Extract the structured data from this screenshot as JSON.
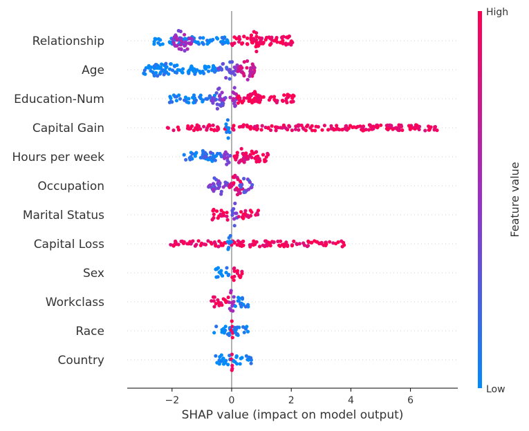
{
  "chart_data": {
    "type": "scatter",
    "subtype": "shap-beeswarm",
    "xlabel": "SHAP value (impact on model output)",
    "xlim": [
      -3.5,
      7.6
    ],
    "xticks": [
      -2,
      0,
      2,
      4,
      6
    ],
    "zero_line": 0,
    "grid": "dotted horizontal per feature",
    "colorbar": {
      "label": "Feature value",
      "high_label": "High",
      "low_label": "Low",
      "low_color": "#008bfb",
      "high_color": "#ff0052",
      "placement": "right"
    },
    "features": [
      {
        "name": "Relationship",
        "clusters": [
          {
            "x": [
              -2.6,
              0.0
            ],
            "density": 0.25,
            "value": 0.0
          },
          {
            "x": [
              -2.0,
              -1.3
            ],
            "density": 1.0,
            "value": 0.5
          },
          {
            "x": [
              0.0,
              2.1
            ],
            "density": 0.3,
            "value": 1.0
          },
          {
            "x": [
              0.6,
              1.0
            ],
            "density": 1.0,
            "value": 1.0
          }
        ]
      },
      {
        "name": "Age",
        "clusters": [
          {
            "x": [
              -3.0,
              -0.5
            ],
            "density": 0.3,
            "value": 0.0
          },
          {
            "x": [
              -2.6,
              -2.0
            ],
            "density": 0.5,
            "value": 0.05
          },
          {
            "x": [
              -0.45,
              0.3
            ],
            "density": 0.8,
            "value": 0.35
          },
          {
            "x": [
              0.2,
              0.8
            ],
            "density": 1.0,
            "value": 0.75
          }
        ]
      },
      {
        "name": "Education-Num",
        "clusters": [
          {
            "x": [
              -2.1,
              -0.5
            ],
            "density": 0.25,
            "value": 0.05
          },
          {
            "x": [
              -0.7,
              -0.2
            ],
            "density": 0.9,
            "value": 0.4
          },
          {
            "x": [
              -0.05,
              0.2
            ],
            "density": 1.0,
            "value": 0.55
          },
          {
            "x": [
              0.2,
              2.1
            ],
            "density": 0.3,
            "value": 1.0
          },
          {
            "x": [
              0.5,
              1.0
            ],
            "density": 0.7,
            "value": 1.0
          }
        ]
      },
      {
        "name": "Capital Gain",
        "clusters": [
          {
            "x": [
              -2.15,
              7.0
            ],
            "density": 0.15,
            "value": 0.95
          },
          {
            "x": [
              -0.2,
              -0.05
            ],
            "density": 1.0,
            "value": 0.0
          }
        ]
      },
      {
        "name": "Hours per week",
        "clusters": [
          {
            "x": [
              -1.6,
              -0.3
            ],
            "density": 0.3,
            "value": 0.05
          },
          {
            "x": [
              -1.0,
              -0.6
            ],
            "density": 0.5,
            "value": 0.15
          },
          {
            "x": [
              -0.25,
              -0.05
            ],
            "density": 1.0,
            "value": 0.45
          },
          {
            "x": [
              0.05,
              1.3
            ],
            "density": 0.4,
            "value": 0.9
          },
          {
            "x": [
              0.1,
              0.5
            ],
            "density": 0.7,
            "value": 0.85
          }
        ]
      },
      {
        "name": "Occupation",
        "clusters": [
          {
            "x": [
              -0.8,
              -0.1
            ],
            "density": 0.8,
            "value": 0.4
          },
          {
            "x": [
              -0.1,
              0.4
            ],
            "density": 1.0,
            "value": 0.85
          },
          {
            "x": [
              0.2,
              0.7
            ],
            "density": 0.6,
            "value": 0.3
          }
        ]
      },
      {
        "name": "Marital Status",
        "clusters": [
          {
            "x": [
              -0.65,
              -0.1
            ],
            "density": 0.4,
            "value": 0.95
          },
          {
            "x": [
              0.0,
              0.2
            ],
            "density": 1.0,
            "value": 0.35
          },
          {
            "x": [
              0.2,
              0.9
            ],
            "density": 0.3,
            "value": 0.95
          }
        ]
      },
      {
        "name": "Capital Loss",
        "clusters": [
          {
            "x": [
              -2.05,
              3.9
            ],
            "density": 0.15,
            "value": 0.95
          },
          {
            "x": [
              -0.15,
              0.0
            ],
            "density": 1.0,
            "value": 0.0
          }
        ]
      },
      {
        "name": "Sex",
        "clusters": [
          {
            "x": [
              -0.55,
              -0.05
            ],
            "density": 0.35,
            "value": 0.0
          },
          {
            "x": [
              0.0,
              0.1
            ],
            "density": 1.0,
            "value": 1.0
          },
          {
            "x": [
              0.1,
              0.35
            ],
            "density": 0.3,
            "value": 1.0
          }
        ]
      },
      {
        "name": "Workclass",
        "clusters": [
          {
            "x": [
              -0.7,
              -0.1
            ],
            "density": 0.4,
            "value": 0.95
          },
          {
            "x": [
              -0.1,
              0.1
            ],
            "density": 1.0,
            "value": 0.55
          },
          {
            "x": [
              0.1,
              0.6
            ],
            "density": 0.35,
            "value": 0.05
          }
        ]
      },
      {
        "name": "Race",
        "clusters": [
          {
            "x": [
              -0.6,
              -0.02
            ],
            "density": 0.3,
            "value": 0.0
          },
          {
            "x": [
              -0.02,
              0.05
            ],
            "density": 1.0,
            "value": 1.0
          },
          {
            "x": [
              0.05,
              0.6
            ],
            "density": 0.3,
            "value": 0.0
          }
        ]
      },
      {
        "name": "Country",
        "clusters": [
          {
            "x": [
              -0.6,
              -0.02
            ],
            "density": 0.35,
            "value": 0.0
          },
          {
            "x": [
              -0.02,
              0.05
            ],
            "density": 1.0,
            "value": 1.0
          },
          {
            "x": [
              0.05,
              0.7
            ],
            "density": 0.3,
            "value": 0.0
          }
        ]
      }
    ]
  }
}
